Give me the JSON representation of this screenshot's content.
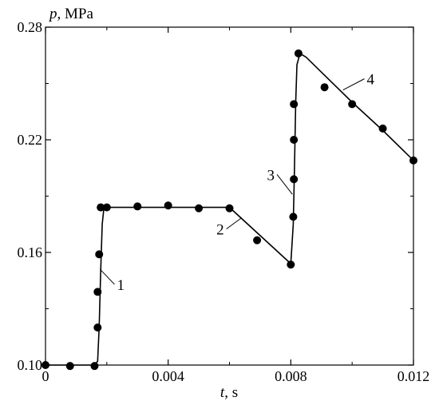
{
  "chart_data": {
    "type": "line",
    "ylabel_var": "p",
    "ylabel_unit": ", MPa",
    "xlabel_var": "t",
    "xlabel_unit": ", s",
    "xlim": [
      0,
      0.012
    ],
    "ylim": [
      0.1,
      0.28
    ],
    "x_ticks": [
      0,
      0.004,
      0.008,
      0.012
    ],
    "x_tick_labels": [
      "0",
      "0.004",
      "0.008",
      "0.012"
    ],
    "y_ticks": [
      0.1,
      0.16,
      0.22,
      0.28
    ],
    "y_tick_labels": [
      "0.10",
      "0.16",
      "0.22",
      "0.28"
    ],
    "grid": false,
    "curve": {
      "x": [
        0,
        0.0016,
        0.0017,
        0.00175,
        0.0018,
        0.00185,
        0.0019,
        0.002,
        0.006,
        0.008,
        0.00808,
        0.00812,
        0.00816,
        0.0082,
        0.0083,
        0.0085,
        0.009,
        0.01,
        0.011,
        0.012
      ],
      "y": [
        0.1,
        0.1,
        0.102,
        0.12,
        0.15,
        0.175,
        0.183,
        0.184,
        0.184,
        0.154,
        0.175,
        0.205,
        0.24,
        0.26,
        0.266,
        0.264,
        0.256,
        0.24,
        0.225,
        0.209
      ]
    },
    "points": {
      "x": [
        0,
        0.0008,
        0.0016,
        0.0017,
        0.0017,
        0.00175,
        0.0018,
        0.002,
        0.003,
        0.004,
        0.005,
        0.006,
        0.0069,
        0.008,
        0.00808,
        0.0081,
        0.0081,
        0.0081,
        0.00825,
        0.0091,
        0.01,
        0.011,
        0.012
      ],
      "y": [
        0.1,
        0.0995,
        0.0995,
        0.12,
        0.139,
        0.159,
        0.184,
        0.184,
        0.1845,
        0.185,
        0.1835,
        0.1835,
        0.1665,
        0.1535,
        0.179,
        0.199,
        0.22,
        0.239,
        0.266,
        0.248,
        0.239,
        0.226,
        0.209
      ]
    },
    "annotations": [
      {
        "text": "1",
        "x": 0.00225,
        "y": 0.143,
        "tx": 0.00178,
        "ty": 0.151
      },
      {
        "text": "2",
        "x": 0.0059,
        "y": 0.1725,
        "tx": 0.0064,
        "ty": 0.1785
      },
      {
        "text": "3",
        "x": 0.00755,
        "y": 0.2015,
        "tx": 0.00805,
        "ty": 0.191
      },
      {
        "text": "4",
        "x": 0.0104,
        "y": 0.2525,
        "tx": 0.0097,
        "ty": 0.2465
      }
    ]
  }
}
